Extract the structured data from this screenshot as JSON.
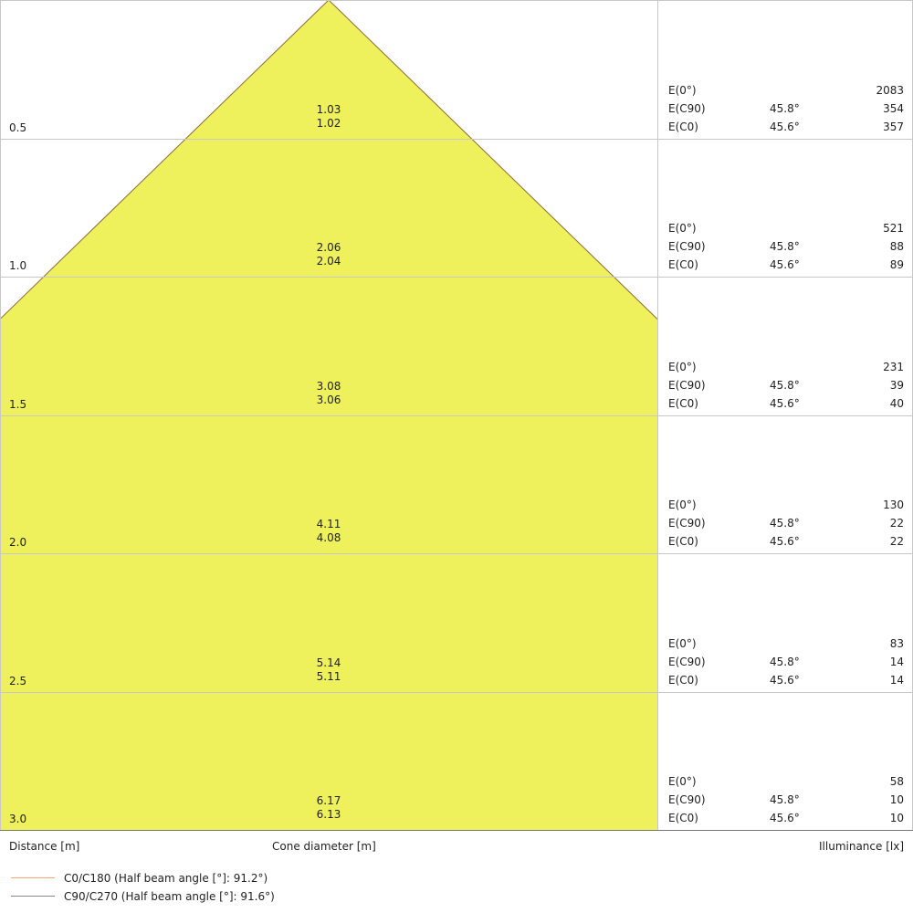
{
  "chart_data": {
    "type": "cone-diagram",
    "colors": {
      "cone_fill": "#eef05c",
      "cone_edge": "#8a6a3a",
      "grid": "#c8c8c8",
      "c0_line": "#f5a67a",
      "c90_line": "#888888"
    },
    "rows": [
      {
        "distance": "0.5",
        "d1": "1.03",
        "d2": "1.02",
        "e0": "2083",
        "ec90_angle": "45.8°",
        "ec90": "354",
        "ec0_angle": "45.6°",
        "ec0": "357"
      },
      {
        "distance": "1.0",
        "d1": "2.06",
        "d2": "2.04",
        "e0": "521",
        "ec90_angle": "45.8°",
        "ec90": "88",
        "ec0_angle": "45.6°",
        "ec0": "89"
      },
      {
        "distance": "1.5",
        "d1": "3.08",
        "d2": "3.06",
        "e0": "231",
        "ec90_angle": "45.8°",
        "ec90": "39",
        "ec0_angle": "45.6°",
        "ec0": "40"
      },
      {
        "distance": "2.0",
        "d1": "4.11",
        "d2": "4.08",
        "e0": "130",
        "ec90_angle": "45.8°",
        "ec90": "22",
        "ec0_angle": "45.6°",
        "ec0": "22"
      },
      {
        "distance": "2.5",
        "d1": "5.14",
        "d2": "5.11",
        "e0": "83",
        "ec90_angle": "45.8°",
        "ec90": "14",
        "ec0_angle": "45.6°",
        "ec0": "14"
      },
      {
        "distance": "3.0",
        "d1": "6.17",
        "d2": "6.13",
        "e0": "58",
        "ec90_angle": "45.8°",
        "ec90": "10",
        "ec0_angle": "45.6°",
        "ec0": "10"
      }
    ],
    "labels": {
      "e0": "E(0°)",
      "ec90": "E(C90)",
      "ec0": "E(C0)"
    },
    "xlabel_distance": "Distance [m]",
    "xlabel_cone": "Cone diameter [m]",
    "xlabel_illuminance": "Illuminance [lx]",
    "legend": [
      {
        "name": "C0/C180 (Half beam angle [°]: 91.2°)"
      },
      {
        "name": "C90/C270 (Half beam angle [°]: 91.6°)"
      }
    ]
  }
}
